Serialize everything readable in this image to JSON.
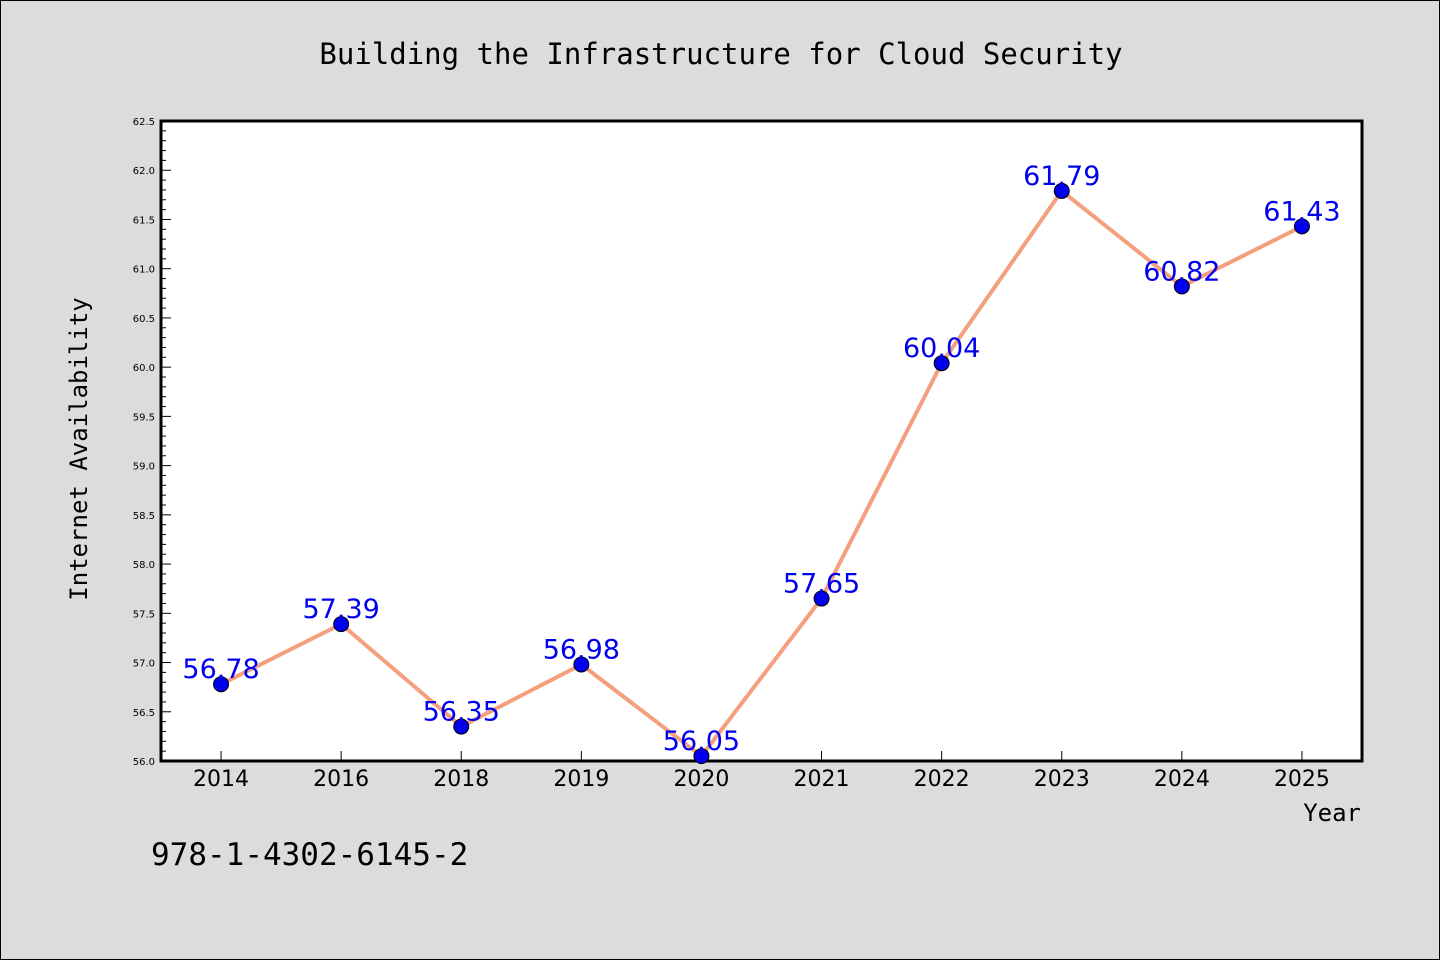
{
  "chart_data": {
    "type": "line",
    "title": "Building the Infrastructure for Cloud Security",
    "xlabel": "Year",
    "ylabel": "Internet Availability",
    "categories": [
      "2014",
      "2016",
      "2018",
      "2019",
      "2020",
      "2021",
      "2022",
      "2023",
      "2024",
      "2025"
    ],
    "values": [
      56.78,
      57.39,
      56.35,
      56.98,
      56.05,
      57.65,
      60.04,
      61.79,
      60.82,
      61.43
    ],
    "value_labels": [
      "56.78",
      "57.39",
      "56.35",
      "56.98",
      "56.05",
      "57.65",
      "60.04",
      "61.79",
      "60.82",
      "61.43"
    ],
    "ylim": [
      56.0,
      62.5
    ],
    "yticks": [
      "56.0",
      "56.5",
      "57.0",
      "57.5",
      "58.0",
      "58.5",
      "59.0",
      "59.5",
      "60.0",
      "60.5",
      "61.0",
      "61.5",
      "62.0",
      "62.5"
    ],
    "grid": false,
    "line_color": "#f4a07f",
    "marker_color": "#0000ee",
    "label_color": "#0000ee"
  },
  "footer_text": "978-1-4302-6145-2"
}
